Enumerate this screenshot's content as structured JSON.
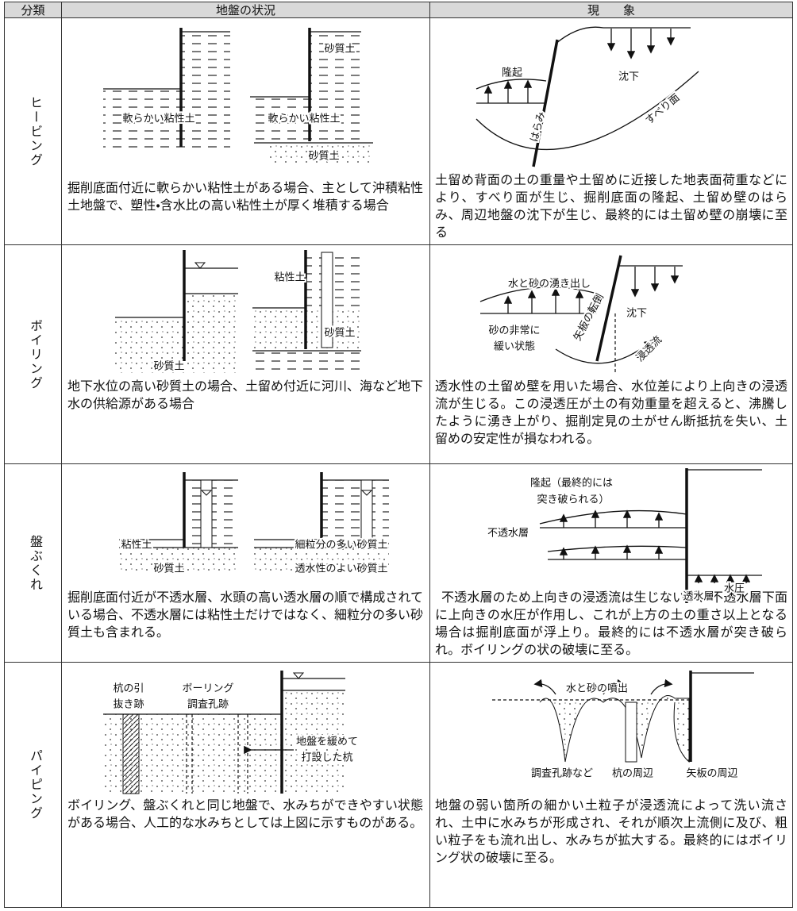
{
  "header": {
    "category": "分類",
    "condition": "地盤の状況",
    "phenomenon": "現　　象"
  },
  "rows": [
    {
      "category": "ヒービング",
      "condition": "掘削底面付近に軟らかい粘性土がある場合、主として沖積粘性土地盤で、塑性・含水比の高い粘性土が厚く堆積する場合",
      "phenomenon": "土留め背面の土の重量や土留めに近接した地表面荷重などにより、すべり面が生じ、掘削底面の隆起、土留め壁のはらみ、周辺地盤の沈下が生じ、最終的には土留め壁の崩壊に至る",
      "condition_labels": [
        "砂質土",
        "軟らかい粘性土",
        "軟らかい粘性土",
        "砂質土"
      ],
      "phenomenon_labels": [
        "隆起",
        "沈下",
        "すべり面",
        "はらみ"
      ]
    },
    {
      "category": "ボイリング",
      "condition": "地下水位の高い砂質土の場合、土留め付近に河川、海など地下水の供給源がある場合",
      "phenomenon": "透水性の土留め壁を用いた場合、水位差により上向きの浸透流が生じる。この浸透圧が土の有効重量を超えると、沸騰したように湧き上がり、掘削定見の土がせん断抵抗を失い、土留めの安定性が損なわれる。",
      "condition_labels": [
        "砂質土",
        "粘性土",
        "砂質土"
      ],
      "phenomenon_labels": [
        "水と砂の湧き出し",
        "沈下",
        "砂の非常に",
        "緩い状態",
        "矢板の転倒",
        "浸透流"
      ]
    },
    {
      "category": "盤ぶくれ",
      "condition": "掘削底面付近が不透水層、水頭の高い透水層の順で構成されている場合、不透水層には粘性土だけではなく、細粒分の多い砂質土も含まれる。",
      "phenomenon": "不透水層のため上向きの浸透流は生じないが、不透水層下面に上向きの水圧が作用し、これが上方の土の重さ以上となる場合は掘削底面が浮上り。最終的には不透水層が突き破られ。ボイリングの状の破壊に至る。",
      "condition_labels": [
        "粘性土",
        "砂質土",
        "細粒分の多い砂質土",
        "透水性のよい砂質土"
      ],
      "phenomenon_labels": [
        "隆起（最終的には",
        "突き破られる）",
        "不透水層",
        "透水層",
        "水圧"
      ]
    },
    {
      "category": "パイピング",
      "condition": "ボイリング、盤ぶくれと同じ地盤で、水みちができやすい状態がある場合、人工的な水みちとしては上図に示すものがある。",
      "phenomenon": "地盤の弱い箇所の細かい土粒子が浸透流によって洗い流され、土中に水みちが形成され、それが順次上流側に及び、粗い粒子をも流れ出し、水みちが拡大する。最終的にはボイリング状の破壊に至る。",
      "condition_labels": [
        "杭の引",
        "抜き跡",
        "ボーリング",
        "調査孔跡",
        "地盤を緩めて",
        "打設した杭"
      ],
      "phenomenon_labels": [
        "水と砂の噴出",
        "調査孔跡など",
        "杭の周辺",
        "矢板の周辺"
      ]
    }
  ]
}
